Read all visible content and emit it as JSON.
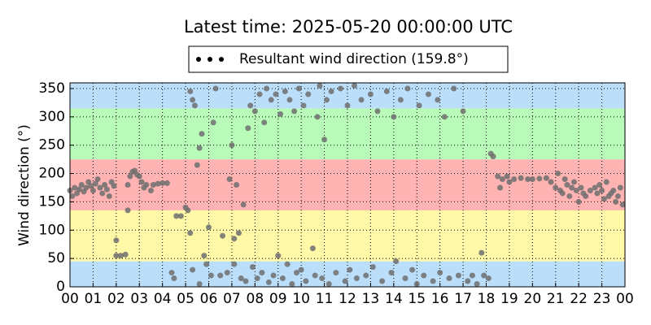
{
  "chart_data": {
    "type": "scatter",
    "title": "Latest time: 2025-05-20 00:00:00 UTC",
    "y_label": "Wind direction (°)",
    "legend": "top",
    "grid": true,
    "bands": [
      {
        "range": [
          0,
          45
        ],
        "color": "#bbdefb"
      },
      {
        "range": [
          45,
          135
        ],
        "color": "#fff9a8"
      },
      {
        "range": [
          135,
          225
        ],
        "color": "#ffb3b3"
      },
      {
        "range": [
          225,
          315
        ],
        "color": "#b9fbb9"
      },
      {
        "range": [
          315,
          360
        ],
        "color": "#bbdefb"
      }
    ],
    "xlim": [
      0,
      24
    ],
    "xticks": [
      {
        "value": 0,
        "label": "00"
      },
      {
        "value": 1,
        "label": "01"
      },
      {
        "value": 2,
        "label": "02"
      },
      {
        "value": 3,
        "label": "03"
      },
      {
        "value": 4,
        "label": "04"
      },
      {
        "value": 5,
        "label": "05"
      },
      {
        "value": 6,
        "label": "06"
      },
      {
        "value": 7,
        "label": "07"
      },
      {
        "value": 8,
        "label": "08"
      },
      {
        "value": 9,
        "label": "09"
      },
      10,
      11,
      12,
      13,
      14,
      15,
      16,
      17,
      18,
      19,
      20,
      21,
      22,
      23,
      {
        "value": 24,
        "label": "00"
      }
    ],
    "ylim": [
      0,
      360
    ],
    "yticks": [
      0,
      50,
      100,
      150,
      200,
      250,
      300,
      350
    ],
    "x": [
      0.0,
      0.1,
      0.2,
      0.3,
      0.4,
      0.5,
      0.6,
      0.7,
      0.8,
      0.9,
      1.0,
      1.1,
      1.2,
      1.3,
      1.4,
      1.5,
      1.6,
      1.7,
      1.8,
      1.9,
      2.0,
      2.0,
      2.2,
      2.4,
      2.5,
      2.5,
      2.6,
      2.7,
      2.8,
      2.9,
      3.0,
      3.1,
      3.2,
      3.3,
      3.5,
      3.6,
      3.8,
      4.0,
      4.2,
      4.4,
      4.5,
      4.6,
      4.8,
      5.0,
      5.1,
      5.2,
      5.3,
      5.2,
      5.3,
      5.4,
      5.5,
      5.6,
      5.7,
      5.6,
      5.8,
      5.9,
      6.0,
      6.1,
      6.2,
      6.3,
      6.5,
      6.6,
      6.8,
      6.9,
      7.0,
      7.1,
      7.1,
      7.2,
      7.3,
      7.4,
      7.5,
      7.6,
      7.7,
      7.8,
      7.9,
      8.0,
      8.1,
      8.2,
      8.3,
      8.4,
      8.5,
      8.6,
      8.7,
      8.8,
      8.9,
      9.0,
      9.1,
      9.2,
      9.3,
      9.4,
      9.5,
      9.6,
      9.7,
      9.8,
      9.9,
      10.0,
      10.1,
      10.2,
      10.3,
      10.5,
      10.6,
      10.7,
      10.8,
      10.9,
      11.0,
      11.1,
      11.2,
      11.3,
      11.5,
      11.7,
      11.9,
      12.0,
      12.1,
      12.3,
      12.4,
      12.6,
      12.8,
      13.0,
      13.1,
      13.3,
      13.5,
      13.7,
      13.9,
      14.0,
      14.1,
      14.3,
      14.5,
      14.6,
      14.8,
      15.0,
      15.1,
      15.3,
      15.5,
      15.7,
      15.9,
      16.0,
      16.2,
      16.4,
      16.6,
      16.8,
      17.0,
      17.2,
      17.4,
      17.6,
      17.8,
      17.9,
      18.1,
      18.2,
      18.3,
      18.5,
      18.6,
      18.7,
      18.9,
      19.0,
      19.2,
      19.5,
      19.8,
      20.0,
      20.3,
      20.6,
      20.8,
      21.0,
      21.1,
      21.2,
      21.3,
      21.4,
      21.5,
      21.6,
      21.7,
      21.8,
      21.9,
      22.0,
      22.1,
      22.2,
      22.3,
      22.5,
      22.7,
      22.8,
      22.9,
      23.0,
      23.1,
      23.2,
      23.3,
      23.4,
      23.5,
      23.6,
      23.7,
      23.8,
      23.9
    ],
    "series": [
      {
        "name": "Resultant wind direction (159.8°)",
        "color": "#6e6e6e",
        "values": [
          170,
          160,
          175,
          165,
          172,
          180,
          168,
          175,
          185,
          178,
          170,
          182,
          190,
          175,
          165,
          180,
          172,
          160,
          185,
          178,
          82,
          55,
          55,
          57,
          135,
          180,
          195,
          203,
          205,
          198,
          195,
          185,
          175,
          180,
          170,
          180,
          182,
          183,
          183,
          25,
          15,
          125,
          125,
          140,
          135,
          95,
          30,
          345,
          330,
          320,
          215,
          245,
          270,
          5,
          55,
          40,
          105,
          20,
          290,
          350,
          20,
          90,
          25,
          190,
          250,
          85,
          40,
          180,
          95,
          15,
          145,
          10,
          280,
          320,
          35,
          310,
          15,
          340,
          25,
          290,
          350,
          8,
          330,
          20,
          340,
          55,
          305,
          15,
          345,
          40,
          330,
          5,
          310,
          25,
          350,
          30,
          320,
          10,
          340,
          68,
          20,
          300,
          355,
          15,
          260,
          330,
          5,
          345,
          25,
          350,
          10,
          320,
          30,
          355,
          15,
          330,
          20,
          340,
          35,
          310,
          10,
          345,
          25,
          300,
          45,
          330,
          15,
          350,
          30,
          5,
          320,
          20,
          340,
          10,
          330,
          25,
          300,
          15,
          350,
          20,
          310,
          10,
          20,
          5,
          60,
          20,
          15,
          235,
          230,
          195,
          175,
          190,
          195,
          185,
          190,
          192,
          190,
          190,
          191,
          192,
          185,
          175,
          200,
          170,
          165,
          190,
          180,
          160,
          175,
          185,
          170,
          150,
          175,
          165,
          160,
          170,
          175,
          165,
          180,
          170,
          155,
          185,
          160,
          165,
          170,
          150,
          160,
          175,
          145
        ]
      }
    ]
  }
}
